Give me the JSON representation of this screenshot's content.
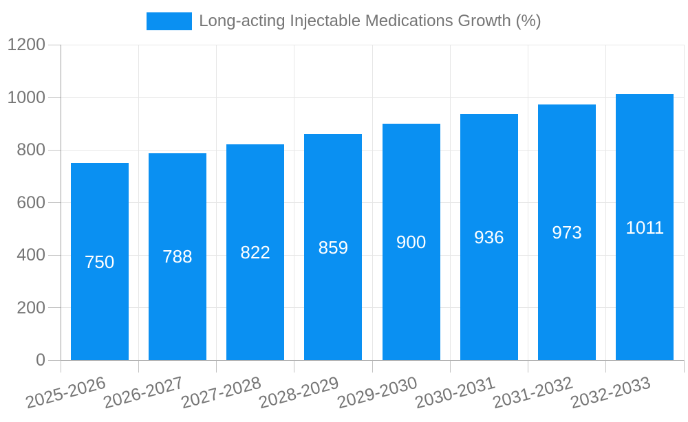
{
  "chart_data": {
    "type": "bar",
    "title": "",
    "legend_label": "Long-acting Injectable Medications Growth (%)",
    "legend_position": "top",
    "categories": [
      "2025-2026",
      "2026-2027",
      "2027-2028",
      "2028-2029",
      "2029-2030",
      "2030-2031",
      "2031-2032",
      "2032-2033"
    ],
    "values": [
      750,
      788,
      822,
      859,
      900,
      936,
      973,
      1011
    ],
    "xlabel": "",
    "ylabel": "",
    "ylim": [
      0,
      1200
    ],
    "yticks": [
      0,
      200,
      400,
      600,
      800,
      1000,
      1200
    ],
    "grid": true,
    "x_label_rotation_deg": -15,
    "colors": {
      "bar": "#0a90f2",
      "value_label": "#ffffff",
      "axis_text": "#757575",
      "gridline": "#e6e6e6",
      "axis_line": "#b3b3b3",
      "y_axis_line": "#9e9e9e",
      "tick": "#c2c2c2",
      "background": "#ffffff"
    }
  }
}
